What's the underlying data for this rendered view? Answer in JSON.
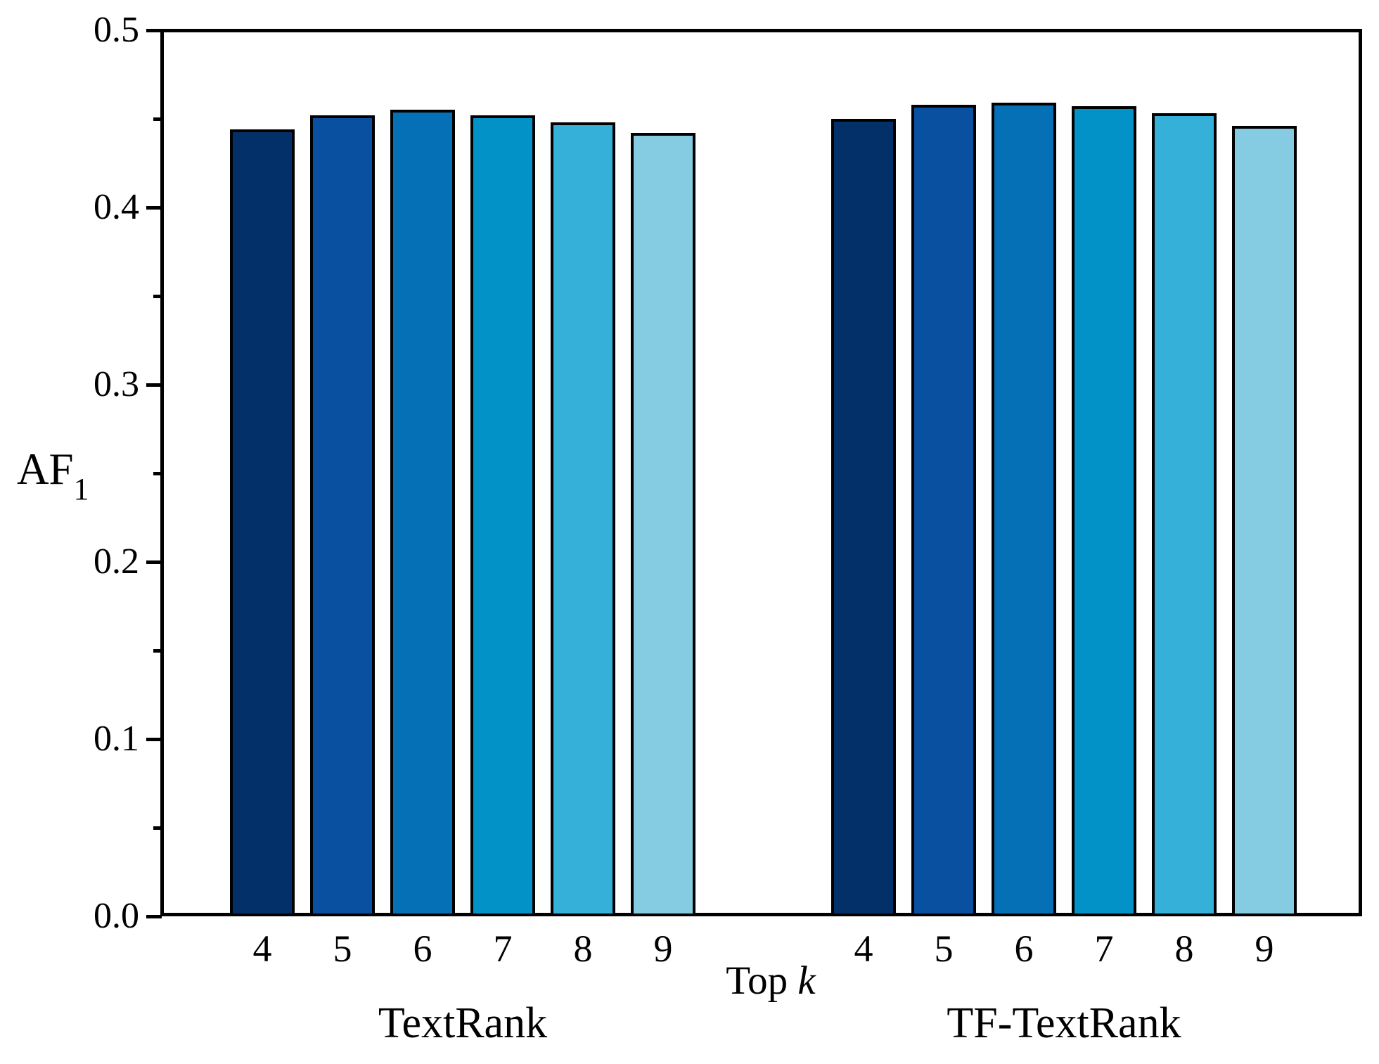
{
  "figure": {
    "background": "#ffffff",
    "ylabel": {
      "text": "AF",
      "subscript": "1"
    },
    "xlabel": {
      "text": "Top",
      "italic": "k"
    }
  },
  "chart_data": {
    "type": "bar",
    "title": "",
    "xlabel": "Top k",
    "ylabel": "AF1",
    "ylim": [
      0.0,
      0.5
    ],
    "ytick_major_step": 0.1,
    "ytick_minor_step": 0.05,
    "ytick_labels": [
      "0.0",
      "0.1",
      "0.2",
      "0.3",
      "0.4",
      "0.5"
    ],
    "categories": [
      "4",
      "5",
      "6",
      "7",
      "8",
      "9"
    ],
    "series": [
      {
        "name": "TextRank",
        "values": [
          0.444,
          0.452,
          0.455,
          0.452,
          0.448,
          0.442
        ]
      },
      {
        "name": "TF-TextRank",
        "values": [
          0.45,
          0.458,
          0.459,
          0.457,
          0.453,
          0.446
        ]
      }
    ],
    "palette": [
      "#04306A",
      "#0A50A0",
      "#0670B6",
      "#0292C7",
      "#35B0D9",
      "#85CCE2"
    ],
    "bar_border_color": "#000000",
    "axis_color": "#000000",
    "grid": false,
    "legend": "none"
  }
}
